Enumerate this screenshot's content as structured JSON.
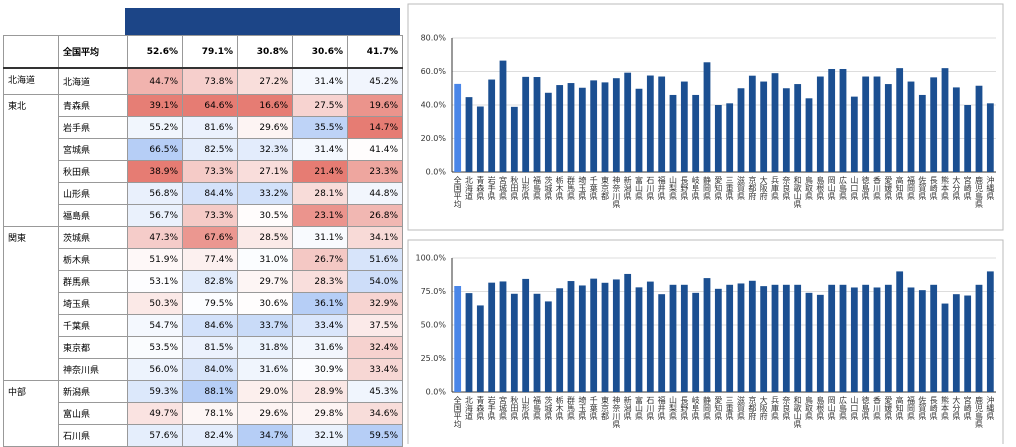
{
  "table": {
    "header": [
      "全国平均",
      "52.6%",
      "79.1%",
      "30.8%",
      "30.6%",
      "41.7%"
    ],
    "rows": [
      {
        "region": "北海道",
        "name": "北海道",
        "values": [
          "44.7%",
          "73.8%",
          "27.2%",
          "31.4%",
          "45.2%"
        ]
      },
      {
        "region": "東北",
        "name": "青森県",
        "values": [
          "39.1%",
          "64.6%",
          "16.6%",
          "27.5%",
          "19.6%"
        ]
      },
      {
        "name": "岩手県",
        "values": [
          "55.2%",
          "81.6%",
          "29.6%",
          "35.5%",
          "14.7%"
        ]
      },
      {
        "name": "宮城県",
        "values": [
          "66.5%",
          "82.5%",
          "32.3%",
          "31.4%",
          "41.4%"
        ]
      },
      {
        "name": "秋田県",
        "values": [
          "38.9%",
          "73.3%",
          "27.1%",
          "21.4%",
          "23.3%"
        ]
      },
      {
        "name": "山形県",
        "values": [
          "56.8%",
          "84.4%",
          "33.2%",
          "28.1%",
          "44.8%"
        ]
      },
      {
        "name": "福島県",
        "values": [
          "56.7%",
          "73.3%",
          "30.5%",
          "23.1%",
          "26.8%"
        ]
      },
      {
        "region": "関東",
        "name": "茨城県",
        "values": [
          "47.3%",
          "67.6%",
          "28.5%",
          "31.1%",
          "34.1%"
        ]
      },
      {
        "name": "栃木県",
        "values": [
          "51.9%",
          "77.4%",
          "31.0%",
          "26.7%",
          "51.6%"
        ]
      },
      {
        "name": "群馬県",
        "values": [
          "53.1%",
          "82.8%",
          "29.7%",
          "28.3%",
          "54.0%"
        ]
      },
      {
        "name": "埼玉県",
        "values": [
          "50.3%",
          "79.5%",
          "30.6%",
          "36.1%",
          "32.9%"
        ]
      },
      {
        "name": "千葉県",
        "values": [
          "54.7%",
          "84.6%",
          "33.7%",
          "33.4%",
          "37.5%"
        ]
      },
      {
        "name": "東京都",
        "values": [
          "53.5%",
          "81.5%",
          "31.8%",
          "31.6%",
          "32.4%"
        ]
      },
      {
        "name": "神奈川県",
        "values": [
          "56.0%",
          "84.0%",
          "31.6%",
          "30.9%",
          "33.4%"
        ]
      },
      {
        "region": "中部",
        "name": "新潟県",
        "values": [
          "59.3%",
          "88.1%",
          "29.0%",
          "28.9%",
          "45.3%"
        ]
      },
      {
        "name": "富山県",
        "values": [
          "49.7%",
          "78.1%",
          "29.6%",
          "29.8%",
          "34.6%"
        ]
      },
      {
        "name": "石川県",
        "values": [
          "57.6%",
          "82.4%",
          "34.7%",
          "32.1%",
          "59.5%"
        ]
      }
    ]
  },
  "chart_data": [
    {
      "type": "bar",
      "categories": [
        "全国平均",
        "北海道",
        "青森県",
        "岩手県",
        "宮城県",
        "秋田県",
        "山形県",
        "福島県",
        "茨城県",
        "栃木県",
        "群馬県",
        "埼玉県",
        "千葉県",
        "東京都",
        "神奈川県",
        "新潟県",
        "富山県",
        "石川県",
        "福井県",
        "山梨県",
        "長野県",
        "岐阜県",
        "静岡県",
        "愛知県",
        "三重県",
        "滋賀県",
        "京都府",
        "大阪府",
        "兵庫県",
        "奈良県",
        "和歌山県",
        "鳥取県",
        "島根県",
        "岡山県",
        "広島県",
        "山口県",
        "徳島県",
        "香川県",
        "愛媛県",
        "高知県",
        "福岡県",
        "佐賀県",
        "長崎県",
        "熊本県",
        "大分県",
        "宮崎県",
        "鹿児島県",
        "沖縄県"
      ],
      "values": [
        52.6,
        44.7,
        39.1,
        55.2,
        66.5,
        38.9,
        56.8,
        56.7,
        47.3,
        51.9,
        53.1,
        50.3,
        54.7,
        53.5,
        56.0,
        59.3,
        49.7,
        57.6,
        57,
        46,
        54,
        46,
        65.5,
        40,
        41,
        50,
        57.5,
        54,
        59,
        50,
        52.5,
        44,
        57,
        61.5,
        61.5,
        45,
        57,
        57,
        52.5,
        62,
        54,
        46,
        56.5,
        62,
        50.5,
        40,
        51.5,
        41
      ],
      "colors": [
        "#4a86e8",
        "#1b4f91",
        "#1b4f91",
        "#1b4f91",
        "#1b4f91",
        "#1b4f91",
        "#1b4f91",
        "#1b4f91",
        "#1b4f91",
        "#1b4f91",
        "#1b4f91",
        "#1b4f91",
        "#1b4f91",
        "#1b4f91",
        "#1b4f91",
        "#1b4f91",
        "#1b4f91",
        "#1b4f91",
        "#1b4f91",
        "#1b4f91",
        "#1b4f91",
        "#1b4f91",
        "#1b4f91",
        "#1b4f91",
        "#1b4f91",
        "#1b4f91",
        "#1b4f91",
        "#1b4f91",
        "#1b4f91",
        "#1b4f91",
        "#1b4f91",
        "#1b4f91",
        "#1b4f91",
        "#1b4f91",
        "#1b4f91",
        "#1b4f91",
        "#1b4f91",
        "#1b4f91",
        "#1b4f91",
        "#1b4f91",
        "#1b4f91",
        "#1b4f91",
        "#1b4f91",
        "#1b4f91",
        "#1b4f91",
        "#1b4f91",
        "#1b4f91",
        "#1b4f91"
      ],
      "ylim": [
        0,
        80
      ],
      "yticks": [
        {
          "value": 0,
          "label": "0.0%"
        },
        {
          "value": 20,
          "label": "20.0%"
        },
        {
          "value": 40,
          "label": "40.0%"
        },
        {
          "value": 60,
          "label": "60.0%"
        },
        {
          "value": 80,
          "label": "80.0%"
        }
      ],
      "grid": true
    },
    {
      "type": "bar",
      "categories": [
        "全国平均",
        "北海道",
        "青森県",
        "岩手県",
        "宮城県",
        "秋田県",
        "山形県",
        "福島県",
        "茨城県",
        "栃木県",
        "群馬県",
        "埼玉県",
        "千葉県",
        "東京都",
        "神奈川県",
        "新潟県",
        "富山県",
        "石川県",
        "福井県",
        "山梨県",
        "長野県",
        "岐阜県",
        "静岡県",
        "愛知県",
        "三重県",
        "滋賀県",
        "京都府",
        "大阪府",
        "兵庫県",
        "奈良県",
        "和歌山県",
        "鳥取県",
        "島根県",
        "岡山県",
        "広島県",
        "山口県",
        "徳島県",
        "香川県",
        "愛媛県",
        "高知県",
        "福岡県",
        "佐賀県",
        "長崎県",
        "熊本県",
        "大分県",
        "宮崎県",
        "鹿児島県",
        "沖縄県"
      ],
      "values": [
        79.1,
        73.8,
        64.6,
        81.6,
        82.5,
        73.3,
        84.4,
        73.3,
        67.6,
        77.4,
        82.8,
        79.5,
        84.6,
        81.5,
        84.0,
        88.1,
        78.1,
        82.4,
        73,
        80,
        80,
        74,
        85,
        77,
        80,
        81,
        83,
        79,
        80,
        80,
        80,
        74,
        72.5,
        80,
        80,
        78,
        80,
        78,
        80,
        90,
        78,
        76,
        80,
        66,
        73,
        72,
        80,
        90
      ],
      "colors": [
        "#4a86e8",
        "#1b4f91",
        "#1b4f91",
        "#1b4f91",
        "#1b4f91",
        "#1b4f91",
        "#1b4f91",
        "#1b4f91",
        "#1b4f91",
        "#1b4f91",
        "#1b4f91",
        "#1b4f91",
        "#1b4f91",
        "#1b4f91",
        "#1b4f91",
        "#1b4f91",
        "#1b4f91",
        "#1b4f91",
        "#1b4f91",
        "#1b4f91",
        "#1b4f91",
        "#1b4f91",
        "#1b4f91",
        "#1b4f91",
        "#1b4f91",
        "#1b4f91",
        "#1b4f91",
        "#1b4f91",
        "#1b4f91",
        "#1b4f91",
        "#1b4f91",
        "#1b4f91",
        "#1b4f91",
        "#1b4f91",
        "#1b4f91",
        "#1b4f91",
        "#1b4f91",
        "#1b4f91",
        "#1b4f91",
        "#1b4f91",
        "#1b4f91",
        "#1b4f91",
        "#1b4f91",
        "#1b4f91",
        "#1b4f91",
        "#1b4f91",
        "#1b4f91",
        "#1b4f91"
      ],
      "ylim": [
        0,
        100
      ],
      "yticks": [
        {
          "value": 0,
          "label": "0.0%"
        },
        {
          "value": 25,
          "label": "25.0%"
        },
        {
          "value": 50,
          "label": "50.0%"
        },
        {
          "value": 75,
          "label": "75.0%"
        },
        {
          "value": 100,
          "label": "100.0%"
        }
      ],
      "grid": true
    }
  ]
}
